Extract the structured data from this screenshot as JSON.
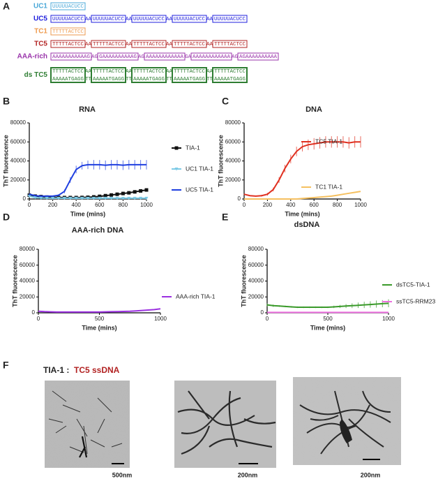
{
  "panel_a": {
    "letter": "A",
    "sequences": [
      {
        "label": "UC1",
        "color": "#4aa8d8",
        "rows": [
          [
            "UUUUUACUCC"
          ]
        ]
      },
      {
        "label": "UC5",
        "color": "#1e1edc",
        "rows": [
          [
            "UUUUUACUCC",
            "AA",
            "UUUUUACUCC",
            "AA",
            "UUUUUACUCC",
            "AA",
            "UUUUUACUCC",
            "AA",
            "UUUUUACUCC"
          ]
        ]
      },
      {
        "label": "TC1",
        "color": "#ee9a4d",
        "rows": [
          [
            "TTTTTACTCC"
          ]
        ]
      },
      {
        "label": "TC5",
        "color": "#b22222",
        "rows": [
          [
            "TTTTTACTCC",
            "AA",
            "TTTTTACTCC",
            "AA",
            "TTTTTACTCC",
            "AA",
            "TTTTTACTCC",
            "AA",
            "TTTTTACTCC"
          ]
        ]
      },
      {
        "label": "AAA-rich",
        "color": "#9933aa",
        "rows": [
          [
            "AAAAAAAAAAAG",
            "AG",
            "GAAAAAAAAAAG",
            "AG",
            "AAAAAAAAAAAA",
            "GA",
            "AAAAAAAAAAAA",
            "AG",
            "AGAAAAAAAAAA"
          ]
        ]
      },
      {
        "label": "ds TC5",
        "color": "#2e7d32",
        "rows": [
          [
            "TTTTTACTCC",
            "AA",
            "TTTTTACTCC",
            "AA",
            "TTTTTACTCC",
            "AA",
            "TTTTTACTCC",
            "AA",
            "TTTTTACTCC"
          ],
          [
            "AAAAATGAGG",
            "TT",
            "AAAAATGAGG",
            "TT",
            "AAAAATGAGG",
            "TT",
            "AAAAATGAGG",
            "TT",
            "AAAAATGAGG"
          ]
        ]
      }
    ]
  },
  "chart_data": [
    {
      "type": "line",
      "panel": "B",
      "title": "RNA",
      "xlabel": "Time (mins)",
      "ylabel": "ThT fluorescence",
      "x": [
        0,
        50,
        100,
        150,
        200,
        250,
        300,
        350,
        400,
        450,
        500,
        550,
        600,
        650,
        700,
        750,
        800,
        850,
        900,
        950,
        1000
      ],
      "xlim": [
        0,
        1000
      ],
      "xticks": [
        0,
        200,
        400,
        600,
        800,
        1000
      ],
      "ylim": [
        0,
        80000
      ],
      "yticks": [
        0,
        20000,
        40000,
        60000,
        80000
      ],
      "legend": "right",
      "series": [
        {
          "name": "TIA-1",
          "color": "#111111",
          "marker": "square",
          "values": [
            4000,
            3000,
            2500,
            2000,
            1800,
            1600,
            1500,
            1500,
            1500,
            1600,
            1800,
            2200,
            2800,
            3500,
            4200,
            5000,
            5800,
            6500,
            7500,
            8500,
            9500
          ]
        },
        {
          "name": "UC1 TIA-1",
          "color": "#7ecbe6",
          "marker": "triangle",
          "values": [
            3000,
            1500,
            1000,
            900,
            800,
            800,
            800,
            800,
            800,
            800,
            800,
            800,
            800,
            800,
            800,
            800,
            800,
            800,
            800,
            800,
            800
          ]
        },
        {
          "name": "UC5 TIA-1",
          "color": "#1f3fe0",
          "values": [
            5000,
            3500,
            3000,
            3000,
            3000,
            4000,
            8000,
            20000,
            31000,
            35000,
            36000,
            36000,
            36000,
            35500,
            36000,
            36000,
            35500,
            36000,
            36000,
            36000,
            36000
          ],
          "errors": [
            1000,
            500,
            500,
            500,
            500,
            1000,
            2000,
            3000,
            4000,
            4000,
            4500,
            5000,
            5000,
            5000,
            5000,
            5000,
            5000,
            5000,
            5000,
            5000,
            5000
          ]
        }
      ]
    },
    {
      "type": "line",
      "panel": "C",
      "title": "DNA",
      "xlabel": "Time (mins)",
      "ylabel": "ThT fluorescence",
      "x": [
        0,
        50,
        100,
        150,
        200,
        250,
        300,
        350,
        400,
        450,
        500,
        550,
        600,
        650,
        700,
        750,
        800,
        850,
        900,
        950,
        1000
      ],
      "xlim": [
        0,
        1000
      ],
      "xticks": [
        0,
        200,
        400,
        600,
        800,
        1000
      ],
      "ylim": [
        0,
        80000
      ],
      "yticks": [
        0,
        20000,
        40000,
        60000,
        80000
      ],
      "legend": "right",
      "series": [
        {
          "name": "TC5 TIA-1",
          "color": "#e03020",
          "values": [
            5000,
            3500,
            3000,
            3500,
            5000,
            10000,
            20000,
            32000,
            42000,
            50000,
            55000,
            57000,
            58000,
            59000,
            60000,
            60000,
            60000,
            60000,
            59000,
            60000,
            60000
          ],
          "errors": [
            500,
            500,
            500,
            1000,
            1500,
            2000,
            3000,
            4000,
            4500,
            5000,
            5000,
            5500,
            6000,
            6000,
            6000,
            6000,
            6000,
            6000,
            6000,
            6000,
            6000
          ]
        },
        {
          "name": "TC1 TIA-1",
          "color": "#f5c060",
          "values": [
            0,
            0,
            0,
            0,
            0,
            0,
            0,
            0,
            0,
            0,
            500,
            1000,
            1500,
            2000,
            2500,
            3000,
            4000,
            5000,
            6000,
            7000,
            8000
          ]
        }
      ]
    },
    {
      "type": "line",
      "panel": "D",
      "title": "AAA-rich DNA",
      "xlabel": "Time (mins)",
      "ylabel": "ThT fluorescence",
      "x": [
        0,
        50,
        100,
        150,
        200,
        250,
        300,
        350,
        400,
        450,
        500,
        550,
        600,
        650,
        700,
        750,
        800,
        850,
        900,
        950,
        1000
      ],
      "xlim": [
        0,
        1000
      ],
      "xticks": [
        0,
        500,
        1000
      ],
      "ylim": [
        0,
        80000
      ],
      "yticks": [
        0,
        20000,
        40000,
        60000,
        80000
      ],
      "legend": "right",
      "series": [
        {
          "name": "AAA-rich TIA-1",
          "color": "#9b30e0",
          "values": [
            2000,
            1500,
            1200,
            1000,
            1000,
            1000,
            1000,
            1000,
            1000,
            1000,
            1000,
            1200,
            1400,
            1600,
            1800,
            2000,
            2500,
            3000,
            3500,
            4000,
            5000
          ]
        }
      ]
    },
    {
      "type": "line",
      "panel": "E",
      "title": "dsDNA",
      "xlabel": "Time (mins)",
      "ylabel": "ThT fluorescence",
      "x": [
        0,
        50,
        100,
        150,
        200,
        250,
        300,
        350,
        400,
        450,
        500,
        550,
        600,
        650,
        700,
        750,
        800,
        850,
        900,
        950,
        1000
      ],
      "xlim": [
        0,
        1000
      ],
      "xticks": [
        0,
        500,
        1000
      ],
      "ylim": [
        0,
        80000
      ],
      "yticks": [
        0,
        20000,
        40000,
        60000,
        80000
      ],
      "legend": "right",
      "series": [
        {
          "name": "dsTC5-TIA-1",
          "color": "#3a9a2a",
          "values": [
            10000,
            9000,
            8500,
            8000,
            7500,
            7000,
            7000,
            7000,
            7000,
            7000,
            7000,
            7500,
            8000,
            8500,
            9000,
            9500,
            10000,
            10500,
            11000,
            11500,
            12000
          ],
          "errors": [
            2000,
            1500,
            1000,
            1000,
            1000,
            1000,
            1000,
            1000,
            1000,
            1000,
            1000,
            1500,
            2000,
            2500,
            3000,
            3500,
            4000,
            4000,
            4500,
            4500,
            5000
          ]
        },
        {
          "name": "ssTC5-RRM23",
          "color": "#ee70e0",
          "values": [
            500,
            500,
            500,
            500,
            500,
            500,
            500,
            500,
            500,
            500,
            500,
            500,
            500,
            500,
            500,
            500,
            500,
            500,
            500,
            500,
            500
          ]
        }
      ]
    }
  ],
  "panel_f": {
    "letter": "F",
    "title_left": "TIA-1 :",
    "title_right": "TC5 ssDNA",
    "scale_labels": [
      "500nm",
      "200nm",
      "200nm"
    ]
  }
}
